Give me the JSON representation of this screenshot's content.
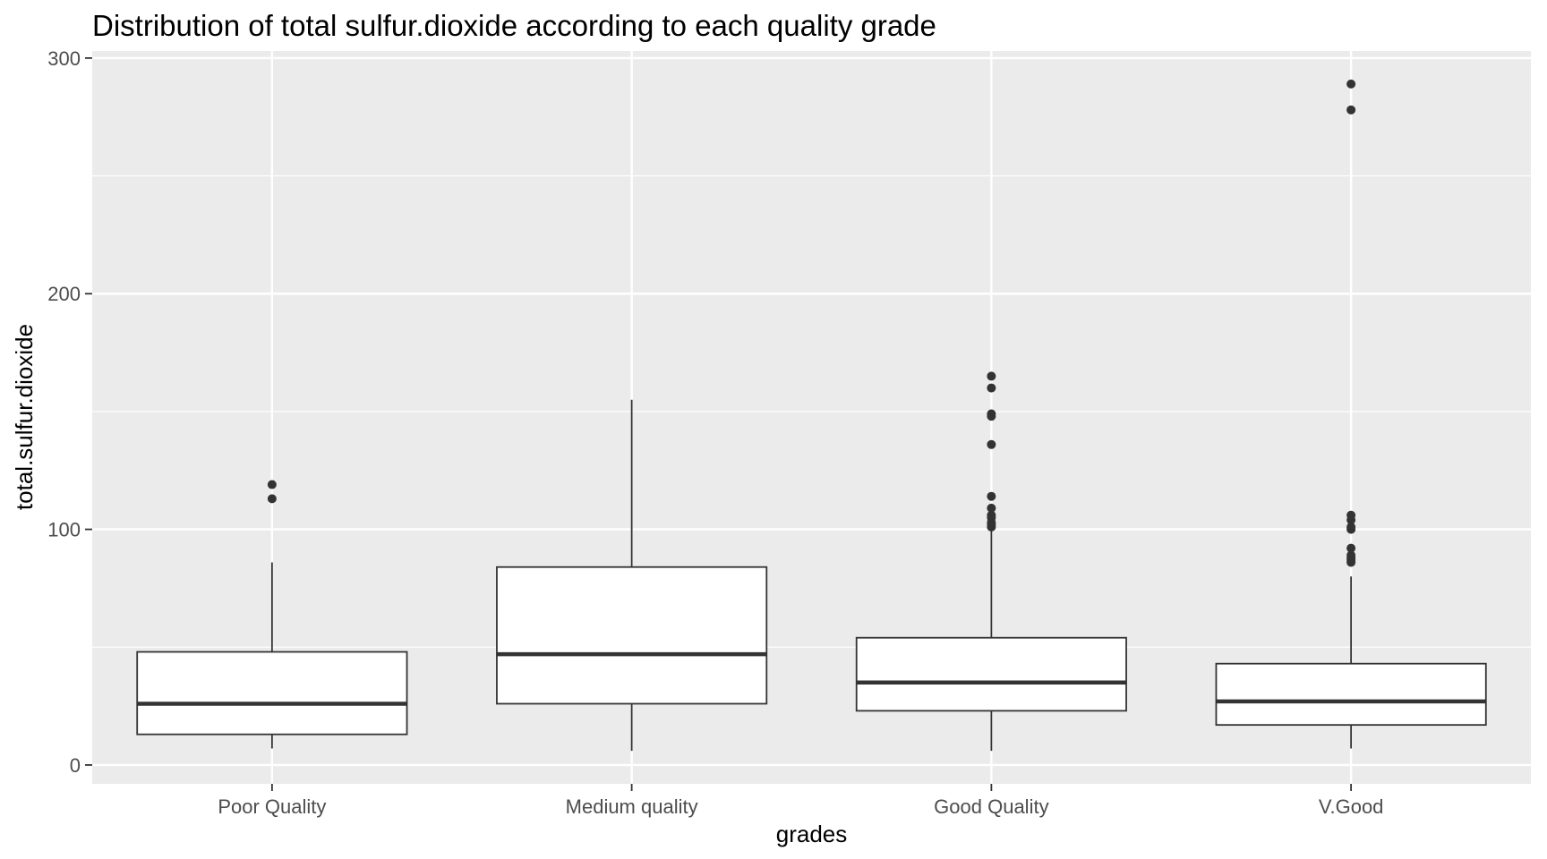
{
  "chart_data": {
    "type": "boxplot",
    "title": "Distribution of total sulfur.dioxide according to each quality grade",
    "xlabel": "grades",
    "ylabel": "total.sulfur.dioxide",
    "ylim": [
      -8,
      303
    ],
    "yticks": [
      0,
      100,
      200,
      300
    ],
    "grid": true,
    "colors": {
      "panel": "#ebebeb",
      "grid": "#ffffff",
      "box_fill": "#ffffff",
      "box_line": "#333333",
      "outlier": "#333333",
      "tick_label": "#4d4d4d"
    },
    "categories": [
      "Poor Quality",
      "Medium quality",
      "Good Quality",
      "V.Good"
    ],
    "boxes": [
      {
        "lower_whisker": 7,
        "q1": 13,
        "median": 26,
        "q3": 48,
        "upper_whisker": 86,
        "outliers": [
          113,
          119
        ]
      },
      {
        "lower_whisker": 6,
        "q1": 26,
        "median": 47,
        "q3": 84,
        "upper_whisker": 155,
        "outliers": []
      },
      {
        "lower_whisker": 6,
        "q1": 23,
        "median": 35,
        "q3": 54,
        "upper_whisker": 100,
        "outliers": [
          101,
          102,
          103,
          105,
          106,
          109,
          114,
          136,
          148,
          149,
          160,
          165
        ]
      },
      {
        "lower_whisker": 7,
        "q1": 17,
        "median": 27,
        "q3": 43,
        "upper_whisker": 80,
        "outliers": [
          86,
          87,
          88,
          89,
          92,
          100,
          101,
          104,
          106,
          278,
          289
        ]
      }
    ]
  }
}
